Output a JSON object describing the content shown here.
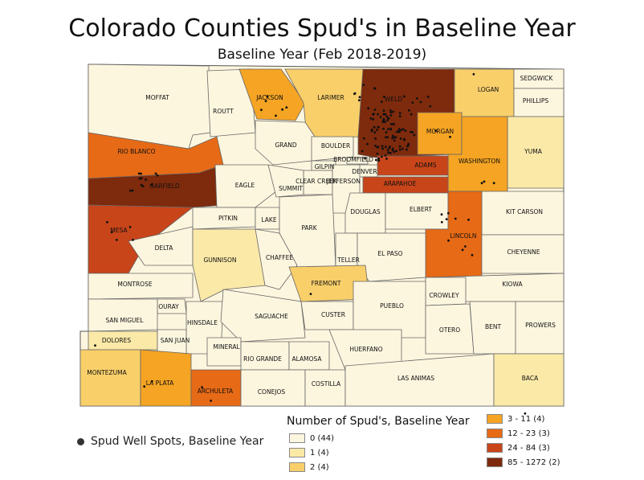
{
  "title": "Colorado Counties Spud's in Baseline Year",
  "subtitle": "Baseline Year (Feb 2018-2019)",
  "dot_legend_label": "Spud Well Spots, Baseline Year",
  "legend_title": "Number of Spud's, Baseline Year",
  "legend_left": [
    {
      "label": "0 (44)",
      "color": "#fdf6df"
    },
    {
      "label": "1 (4)",
      "color": "#fbe9a8"
    },
    {
      "label": "2 (4)",
      "color": "#f9cf6a"
    }
  ],
  "legend_right": [
    {
      "label": "3 - 11 (4)",
      "color": "#f5a423"
    },
    {
      "label": "12 - 23 (3)",
      "color": "#e76a16"
    },
    {
      "label": "24 - 84 (3)",
      "color": "#c8451a"
    },
    {
      "label": "85 - 1272 (2)",
      "color": "#7e2a0c"
    }
  ],
  "counties": [
    {
      "name": "MOFFAT",
      "color": "#fdf6df"
    },
    {
      "name": "ROUTT",
      "color": "#fdf6df"
    },
    {
      "name": "JACKSON",
      "color": "#f5a423"
    },
    {
      "name": "LARIMER",
      "color": "#f9cf6a"
    },
    {
      "name": "WELD",
      "color": "#7e2a0c"
    },
    {
      "name": "LOGAN",
      "color": "#f9cf6a"
    },
    {
      "name": "SEDGWICK",
      "color": "#fdf6df"
    },
    {
      "name": "PHILLIPS",
      "color": "#fdf6df"
    },
    {
      "name": "MORGAN",
      "color": "#f5a423"
    },
    {
      "name": "YUMA",
      "color": "#fbe9a8"
    },
    {
      "name": "WASHINGTON",
      "color": "#f5a423"
    },
    {
      "name": "RIO BLANCO",
      "color": "#e76a16"
    },
    {
      "name": "GARFIELD",
      "color": "#7e2a0c"
    },
    {
      "name": "GRAND",
      "color": "#fdf6df"
    },
    {
      "name": "BOULDER",
      "color": "#fdf6df"
    },
    {
      "name": "BROOMFIELD",
      "color": "#fdf6df"
    },
    {
      "name": "ADAMS",
      "color": "#c8451a"
    },
    {
      "name": "DENVER",
      "color": "#fdf6df"
    },
    {
      "name": "ARAPAHOE",
      "color": "#c8451a"
    },
    {
      "name": "GILPIN",
      "color": "#fdf6df"
    },
    {
      "name": "CLEAR CREEK",
      "color": "#fdf6df"
    },
    {
      "name": "JEFFERSON",
      "color": "#fdf6df"
    },
    {
      "name": "EAGLE",
      "color": "#fdf6df"
    },
    {
      "name": "SUMMIT",
      "color": "#fdf6df"
    },
    {
      "name": "MESA",
      "color": "#c8451a"
    },
    {
      "name": "PITKIN",
      "color": "#fdf6df"
    },
    {
      "name": "LAKE",
      "color": "#fdf6df"
    },
    {
      "name": "PARK",
      "color": "#fdf6df"
    },
    {
      "name": "DOUGLAS",
      "color": "#fdf6df"
    },
    {
      "name": "ELBERT",
      "color": "#fdf6df"
    },
    {
      "name": "KIT CARSON",
      "color": "#fdf6df"
    },
    {
      "name": "LINCOLN",
      "color": "#e76a16"
    },
    {
      "name": "CHEYENNE",
      "color": "#fdf6df"
    },
    {
      "name": "DELTA",
      "color": "#fdf6df"
    },
    {
      "name": "GUNNISON",
      "color": "#fbe9a8"
    },
    {
      "name": "CHAFFEE",
      "color": "#fdf6df"
    },
    {
      "name": "TELLER",
      "color": "#fdf6df"
    },
    {
      "name": "EL PASO",
      "color": "#fdf6df"
    },
    {
      "name": "MONTROSE",
      "color": "#fdf6df"
    },
    {
      "name": "FREMONT",
      "color": "#f9cf6a"
    },
    {
      "name": "KIOWA",
      "color": "#fdf6df"
    },
    {
      "name": "CROWLEY",
      "color": "#fdf6df"
    },
    {
      "name": "OURAY",
      "color": "#fdf6df"
    },
    {
      "name": "SAN MIGUEL",
      "color": "#fdf6df"
    },
    {
      "name": "HINSDALE",
      "color": "#fdf6df"
    },
    {
      "name": "SAGUACHE",
      "color": "#fdf6df"
    },
    {
      "name": "CUSTER",
      "color": "#fdf6df"
    },
    {
      "name": "PUEBLO",
      "color": "#fdf6df"
    },
    {
      "name": "OTERO",
      "color": "#fdf6df"
    },
    {
      "name": "BENT",
      "color": "#fdf6df"
    },
    {
      "name": "PROWERS",
      "color": "#fdf6df"
    },
    {
      "name": "DOLORES",
      "color": "#fbe9a8"
    },
    {
      "name": "SAN JUAN",
      "color": "#fdf6df"
    },
    {
      "name": "MINERAL",
      "color": "#fdf6df"
    },
    {
      "name": "RIO GRANDE",
      "color": "#fdf6df"
    },
    {
      "name": "ALAMOSA",
      "color": "#fdf6df"
    },
    {
      "name": "HUERFANO",
      "color": "#fdf6df"
    },
    {
      "name": "MONTEZUMA",
      "color": "#f9cf6a"
    },
    {
      "name": "LA PLATA",
      "color": "#f5a423"
    },
    {
      "name": "ARCHULETA",
      "color": "#e76a16"
    },
    {
      "name": "CONEJOS",
      "color": "#fdf6df"
    },
    {
      "name": "COSTILLA",
      "color": "#fdf6df"
    },
    {
      "name": "LAS ANIMAS",
      "color": "#fdf6df"
    },
    {
      "name": "BACA",
      "color": "#fbe9a8"
    }
  ]
}
